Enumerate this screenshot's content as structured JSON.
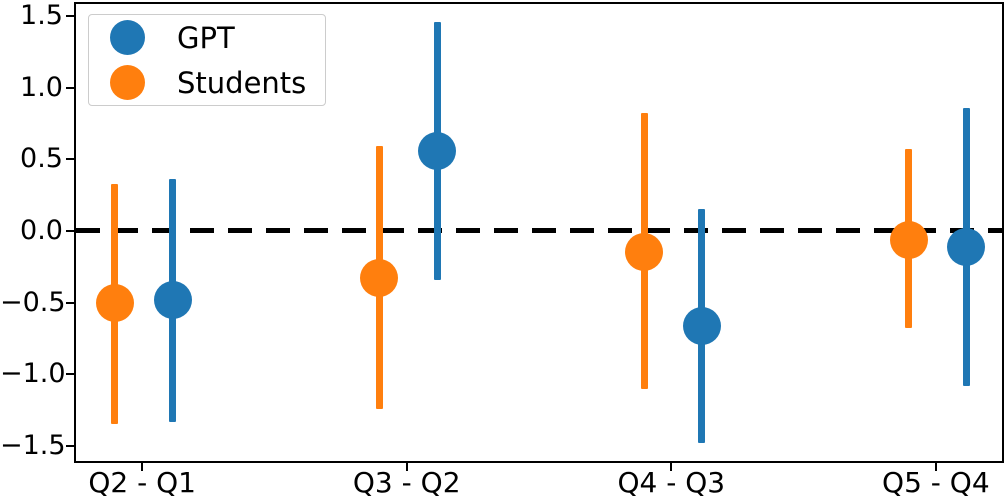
{
  "chart_data": {
    "type": "scatter",
    "subtype": "errorbar",
    "title": "",
    "xlabel": "",
    "ylabel": "",
    "categories": [
      "Q2 - Q1",
      "Q3 - Q2",
      "Q4 - Q3",
      "Q5 - Q4"
    ],
    "series": [
      {
        "name": "GPT",
        "color": "#1f77b4",
        "offset": 0.115,
        "points": [
          {
            "y": -0.48,
            "lo": -1.33,
            "hi": 0.36
          },
          {
            "y": 0.56,
            "lo": -0.34,
            "hi": 1.46
          },
          {
            "y": -0.66,
            "lo": -1.48,
            "hi": 0.15
          },
          {
            "y": -0.11,
            "lo": -1.08,
            "hi": 0.86
          }
        ]
      },
      {
        "name": "Students",
        "color": "#ff7f0e",
        "offset": -0.103,
        "points": [
          {
            "y": -0.5,
            "lo": -1.35,
            "hi": 0.33
          },
          {
            "y": -0.33,
            "lo": -1.24,
            "hi": 0.59
          },
          {
            "y": -0.15,
            "lo": -1.1,
            "hi": 0.82
          },
          {
            "y": -0.06,
            "lo": -0.68,
            "hi": 0.57
          }
        ]
      }
    ],
    "yticks": [
      {
        "v": 1.5,
        "label": "1.5"
      },
      {
        "v": 1.0,
        "label": "1.0"
      },
      {
        "v": 0.5,
        "label": "0.5"
      },
      {
        "v": 0.0,
        "label": "0.0"
      },
      {
        "v": -0.5,
        "label": "−0.5"
      },
      {
        "v": -1.0,
        "label": "−1.0"
      },
      {
        "v": -1.5,
        "label": "−1.5"
      }
    ],
    "ylim": [
      -1.605,
      1.584
    ],
    "xlim": [
      -0.25,
      3.25
    ],
    "zero_line": {
      "y": 0,
      "style": "dashed",
      "color": "#000000"
    },
    "grid": false,
    "legend": {
      "position": "upper left",
      "entries": [
        "GPT",
        "Students"
      ]
    },
    "colors": {
      "gpt": "#1f77b4",
      "students": "#ff7f0e",
      "axis": "#000000"
    }
  }
}
